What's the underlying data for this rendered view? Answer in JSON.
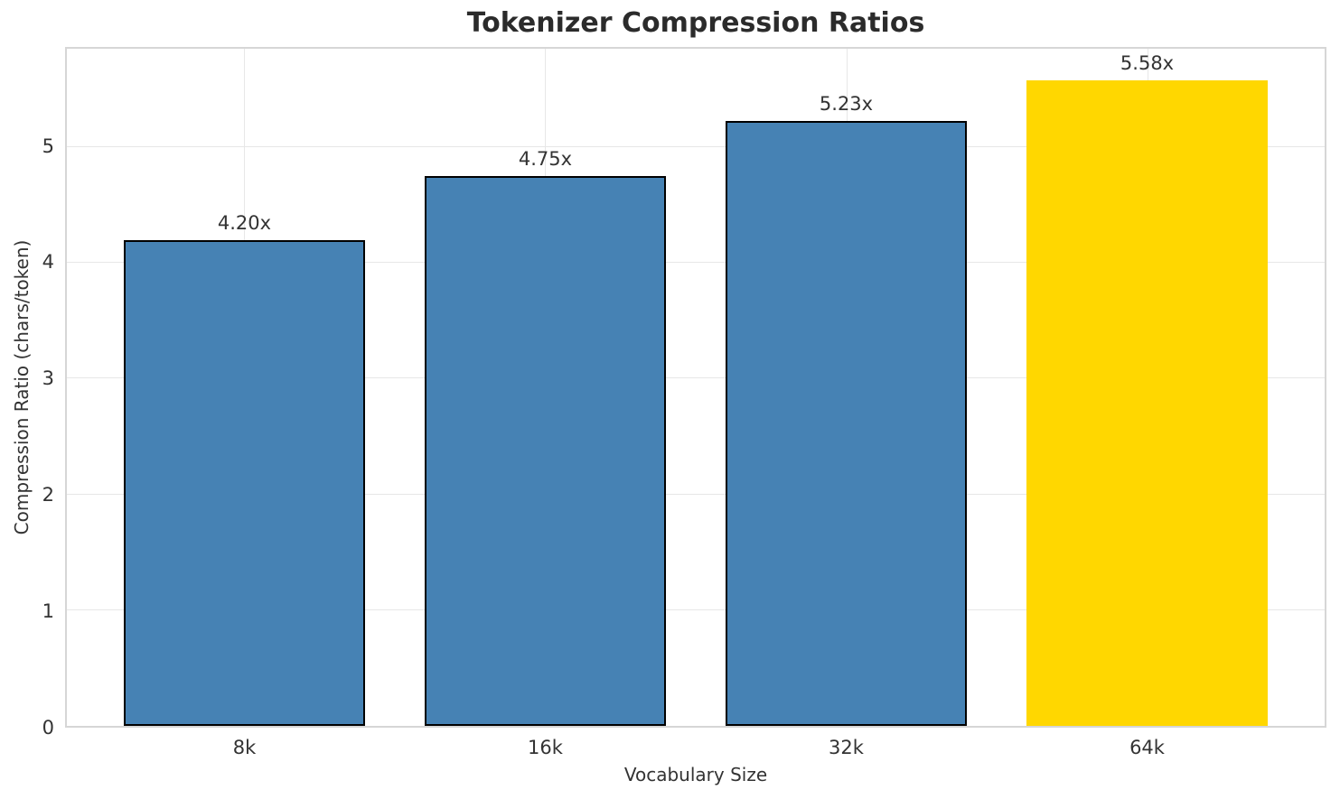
{
  "chart_data": {
    "type": "bar",
    "title": "Tokenizer Compression Ratios",
    "xlabel": "Vocabulary Size",
    "ylabel": "Compression Ratio (chars/token)",
    "categories": [
      "8k",
      "16k",
      "32k",
      "64k"
    ],
    "values": [
      4.2,
      4.75,
      5.23,
      5.58
    ],
    "bar_labels": [
      "4.20x",
      "4.75x",
      "5.23x",
      "5.58x"
    ],
    "bar_colors": [
      "#4682B4",
      "#4682B4",
      "#4682B4",
      "#FFD700"
    ],
    "bar_edge_colors": [
      "#000000",
      "#000000",
      "#000000",
      "none"
    ],
    "yticks": [
      "0",
      "1",
      "2",
      "3",
      "4",
      "5"
    ],
    "ylim": [
      0,
      5.85
    ],
    "grid": true,
    "legend_position": "none"
  },
  "colors": {
    "bar_default": "#4682B4",
    "bar_highlight": "#FFD700",
    "bar_edge": "#000000",
    "grid": "#e7e7e7",
    "spine": "#d6d6d6",
    "text": "#333333",
    "title_text": "#2b2b2b"
  }
}
